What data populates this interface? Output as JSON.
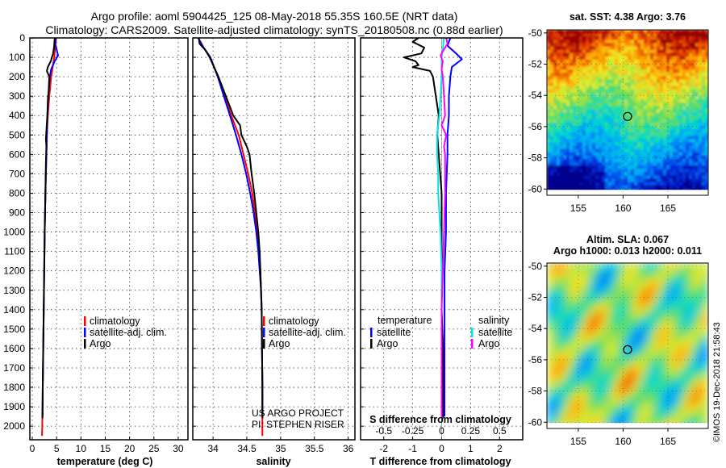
{
  "header": {
    "title_line1": "Argo profile: aoml 5904425_125 08-May-2018 55.35S 160.5E (NRT data)",
    "title_line2": "Climatology: CARS2009. Satellite-adjusted climatology: synTS_20180508.nc (0.88d earlier)"
  },
  "colors": {
    "climatology": "#ff0000",
    "satellite": "#0000ff",
    "argo": "#000000",
    "sat_salinity": "#00e5e5",
    "argo_salinity": "#ff00ff"
  },
  "chart_data": [
    {
      "id": "temperature",
      "type": "line",
      "xlabel": "temperature (deg C)",
      "ylabel": "",
      "xlim": [
        -0.5,
        32
      ],
      "ylim": [
        2070,
        0
      ],
      "xticks": [
        0,
        5,
        10,
        15,
        20,
        25,
        30
      ],
      "yticks": [
        0,
        100,
        200,
        300,
        400,
        500,
        600,
        700,
        800,
        900,
        1000,
        1100,
        1200,
        1300,
        1400,
        1500,
        1600,
        1700,
        1800,
        1900,
        2000
      ],
      "legend": [
        "climatology",
        "satellite-adj. clim.",
        "Argo"
      ],
      "series": [
        {
          "name": "climatology",
          "color": "#ff0000",
          "depth": [
            0,
            50,
            100,
            150,
            200,
            300,
            400,
            500,
            600,
            800,
            1000,
            1200,
            1400,
            1600,
            1800,
            2000,
            2050
          ],
          "values": [
            4.9,
            4.7,
            4.5,
            4.2,
            3.9,
            3.5,
            3.2,
            3.0,
            2.9,
            2.7,
            2.55,
            2.45,
            2.35,
            2.25,
            2.15,
            2.05,
            2.0
          ]
        },
        {
          "name": "satellite-adj. clim.",
          "color": "#0000ff",
          "depth": [
            0,
            30,
            60,
            90,
            120,
            160,
            200,
            300,
            400,
            500,
            600,
            800,
            1000,
            1200,
            1400,
            1600,
            1800,
            1950
          ],
          "values": [
            4.8,
            4.7,
            5.0,
            5.3,
            4.6,
            3.9,
            3.6,
            3.3,
            3.1,
            3.0,
            2.9,
            2.7,
            2.55,
            2.45,
            2.35,
            2.25,
            2.15,
            2.1
          ]
        },
        {
          "name": "Argo",
          "color": "#000000",
          "depth": [
            0,
            40,
            80,
            120,
            150,
            170,
            200,
            260,
            320,
            400,
            480,
            520,
            560,
            640,
            800,
            1000,
            1200,
            1400,
            1600,
            1800,
            1960
          ],
          "values": [
            4.6,
            4.5,
            4.3,
            3.8,
            3.2,
            3.0,
            3.5,
            3.4,
            3.2,
            3.1,
            2.9,
            2.8,
            2.9,
            2.8,
            2.7,
            2.55,
            2.45,
            2.35,
            2.25,
            2.15,
            2.1
          ]
        }
      ]
    },
    {
      "id": "salinity",
      "type": "line",
      "xlabel": "salinity",
      "ylabel": "",
      "xlim": [
        33.7,
        36.1
      ],
      "ylim": [
        2070,
        0
      ],
      "xticks": [
        34,
        34.5,
        35,
        35.5,
        36
      ],
      "legend": [
        "climatology",
        "satellite-adj. clim.",
        "Argo"
      ],
      "credit_line1": "US ARGO PROJECT",
      "credit_line2": "PI: STEPHEN RISER",
      "series": [
        {
          "name": "climatology",
          "color": "#ff0000",
          "depth": [
            0,
            50,
            100,
            200,
            300,
            400,
            500,
            600,
            700,
            800,
            900,
            1000,
            1100,
            1200,
            1300,
            1400,
            1600,
            1800,
            2000,
            2050
          ],
          "values": [
            33.78,
            33.86,
            33.96,
            34.07,
            34.17,
            34.27,
            34.38,
            34.45,
            34.52,
            34.58,
            34.62,
            34.65,
            34.68,
            34.7,
            34.71,
            34.72,
            34.725,
            34.73,
            34.73,
            34.73
          ]
        },
        {
          "name": "satellite-adj. clim.",
          "color": "#0000ff",
          "depth": [
            0,
            50,
            100,
            200,
            300,
            400,
            500,
            600,
            700,
            800,
            900,
            1000,
            1100,
            1200,
            1300,
            1400,
            1600,
            1800,
            1950
          ],
          "values": [
            33.78,
            33.86,
            33.96,
            34.07,
            34.16,
            34.25,
            34.34,
            34.42,
            34.49,
            34.55,
            34.6,
            34.64,
            34.67,
            34.69,
            34.71,
            34.72,
            34.725,
            34.73,
            34.73
          ]
        },
        {
          "name": "Argo",
          "color": "#000000",
          "depth": [
            0,
            30,
            60,
            100,
            200,
            300,
            400,
            450,
            500,
            560,
            600,
            700,
            800,
            900,
            1000,
            1100,
            1200,
            1300,
            1400,
            1600,
            1800,
            1960
          ],
          "values": [
            33.79,
            33.8,
            33.88,
            33.95,
            34.08,
            34.19,
            34.3,
            34.4,
            34.42,
            34.5,
            34.54,
            34.57,
            34.61,
            34.64,
            34.67,
            34.69,
            34.7,
            34.71,
            34.72,
            34.725,
            34.73,
            34.73
          ]
        }
      ]
    },
    {
      "id": "difference",
      "type": "line",
      "xlabel": "T difference from climatology",
      "xlabel_top": "S difference from climatology",
      "xlim": [
        -2.8,
        2.8
      ],
      "ylim": [
        2070,
        0
      ],
      "xticks": [
        -2,
        -1,
        0,
        1,
        2
      ],
      "xticks_s": [
        -0.5,
        -0.25,
        0,
        0.25,
        0.5
      ],
      "legend_temperature_heading": "temperature",
      "legend_salinity_heading": "salinity",
      "legend_temperature": [
        "satellite",
        "Argo"
      ],
      "legend_salinity": [
        "satellite",
        "Argo"
      ],
      "series": [
        {
          "name": "temperature satellite",
          "color": "#0000ff",
          "depth": [
            0,
            40,
            80,
            110,
            150,
            200,
            300,
            400,
            500,
            600,
            800,
            1000,
            1200,
            1400,
            1600,
            1800,
            1950
          ],
          "values": [
            0.3,
            0.2,
            0.5,
            0.7,
            0.35,
            0.3,
            0.25,
            0.25,
            0.2,
            0.2,
            0.15,
            0.15,
            0.1,
            0.1,
            0.1,
            0.1,
            0.1
          ]
        },
        {
          "name": "temperature Argo",
          "color": "#000000",
          "depth": [
            0,
            20,
            50,
            80,
            100,
            120,
            140,
            150,
            170,
            200,
            300,
            400,
            500,
            600,
            800,
            1000,
            1200,
            1400,
            1600,
            1800,
            1960
          ],
          "values": [
            -0.8,
            -1.0,
            -0.6,
            -0.7,
            -1.3,
            -0.9,
            -0.8,
            -1.0,
            -0.4,
            -0.3,
            -0.2,
            -0.1,
            -0.15,
            -0.1,
            0.0,
            0.0,
            0.0,
            0.0,
            0.05,
            0.05,
            0.05
          ]
        },
        {
          "name": "salinity satellite",
          "color": "#00e5e5",
          "depth": [
            0,
            60,
            100,
            200,
            300,
            400,
            500,
            600,
            700,
            800,
            900,
            1000,
            1200,
            1400,
            1600,
            1800,
            1950
          ],
          "values": [
            0.02,
            0.01,
            0.0,
            0.0,
            -0.01,
            -0.02,
            -0.04,
            -0.04,
            -0.03,
            -0.03,
            -0.02,
            -0.01,
            0.0,
            0.0,
            0.0,
            0.0,
            0.0
          ]
        },
        {
          "name": "salinity Argo",
          "color": "#ff00ff",
          "depth": [
            0,
            30,
            60,
            90,
            120,
            160,
            200,
            300,
            400,
            450,
            500,
            560,
            600,
            800,
            1000,
            1200,
            1400,
            1600,
            1800,
            1960
          ],
          "values": [
            0.04,
            0.05,
            0.02,
            -0.01,
            0.01,
            0.0,
            0.01,
            0.02,
            0.03,
            0.0,
            0.04,
            0.02,
            0.03,
            0.03,
            0.02,
            0.01,
            0.0,
            0.0,
            0.0,
            0.0
          ]
        }
      ]
    },
    {
      "id": "sst_map",
      "type": "heatmap",
      "title": "sat. SST: 4.38 Argo: 3.76",
      "xticks": [
        155,
        160,
        165
      ],
      "yticks": [
        -50,
        -52,
        -54,
        -56,
        -58,
        -60
      ],
      "xlim": [
        151.5,
        169.5
      ],
      "ylim": [
        -60.4,
        -49.8
      ],
      "argo_position": [
        160.5,
        -55.35
      ]
    },
    {
      "id": "sla_map",
      "type": "heatmap",
      "title_line1": "Altim. SLA: 0.067",
      "title_line2": "Argo h1000: 0.013 h2000: 0.011",
      "xticks": [
        155,
        160,
        165
      ],
      "yticks": [
        -50,
        -52,
        -54,
        -56,
        -58,
        -60
      ],
      "xlim": [
        151.5,
        169.5
      ],
      "ylim": [
        -60.4,
        -49.8
      ],
      "argo_position": [
        160.5,
        -55.35
      ]
    }
  ],
  "footer": {
    "stamp": "©IMOS 19-Dec-2018 21:58:43"
  }
}
